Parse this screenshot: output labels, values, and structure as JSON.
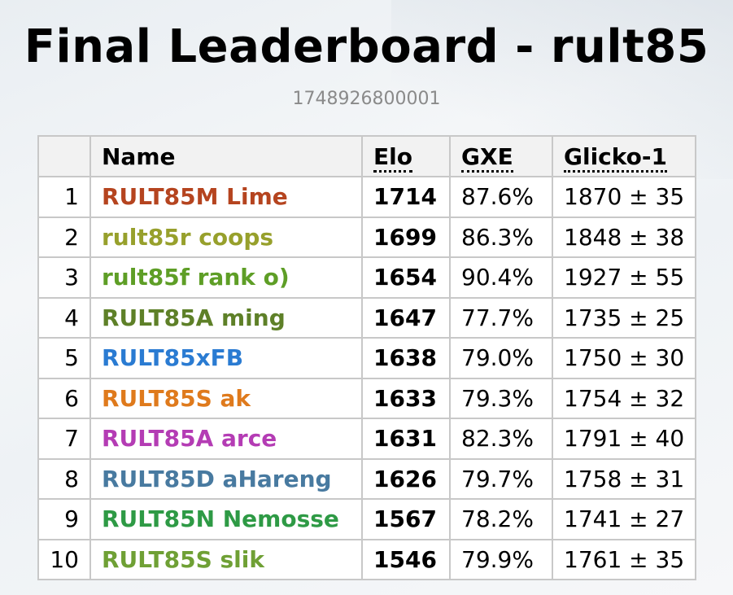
{
  "header": {
    "title": "Final Leaderboard - rult85",
    "subtitle": "1748926800001"
  },
  "table": {
    "columns": {
      "rank": "",
      "name": "Name",
      "elo": "Elo",
      "gxe": "GXE",
      "glicko": "Glicko-1"
    },
    "rows": [
      {
        "rank": "1",
        "name": "RULT85M Lime",
        "color": "#b5441f",
        "elo": "1714",
        "gxe": "87.6%",
        "glicko": "1870 ± 35"
      },
      {
        "rank": "2",
        "name": "rult85r coops",
        "color": "#97a02c",
        "elo": "1699",
        "gxe": "86.3%",
        "glicko": "1848 ± 38"
      },
      {
        "rank": "3",
        "name": "rult85f rank o)",
        "color": "#5e9e26",
        "elo": "1654",
        "gxe": "90.4%",
        "glicko": "1927 ± 55"
      },
      {
        "rank": "4",
        "name": "RULT85A ming",
        "color": "#5e8028",
        "elo": "1647",
        "gxe": "77.7%",
        "glicko": "1735 ± 25"
      },
      {
        "rank": "5",
        "name": "RULT85xFB",
        "color": "#2a7bd2",
        "elo": "1638",
        "gxe": "79.0%",
        "glicko": "1750 ± 30"
      },
      {
        "rank": "6",
        "name": "RULT85S ak",
        "color": "#df7a1c",
        "elo": "1633",
        "gxe": "79.3%",
        "glicko": "1754 ± 32"
      },
      {
        "rank": "7",
        "name": "RULT85A arce",
        "color": "#b43cb4",
        "elo": "1631",
        "gxe": "82.3%",
        "glicko": "1791 ± 40"
      },
      {
        "rank": "8",
        "name": "RULT85D aHareng",
        "color": "#487aa0",
        "elo": "1626",
        "gxe": "79.7%",
        "glicko": "1758 ± 31"
      },
      {
        "rank": "9",
        "name": "RULT85N Nemosse",
        "color": "#2e9a45",
        "elo": "1567",
        "gxe": "78.2%",
        "glicko": "1741 ± 27"
      },
      {
        "rank": "10",
        "name": "RULT85S slik",
        "color": "#6fa035",
        "elo": "1546",
        "gxe": "79.9%",
        "glicko": "1761 ± 35"
      }
    ]
  }
}
